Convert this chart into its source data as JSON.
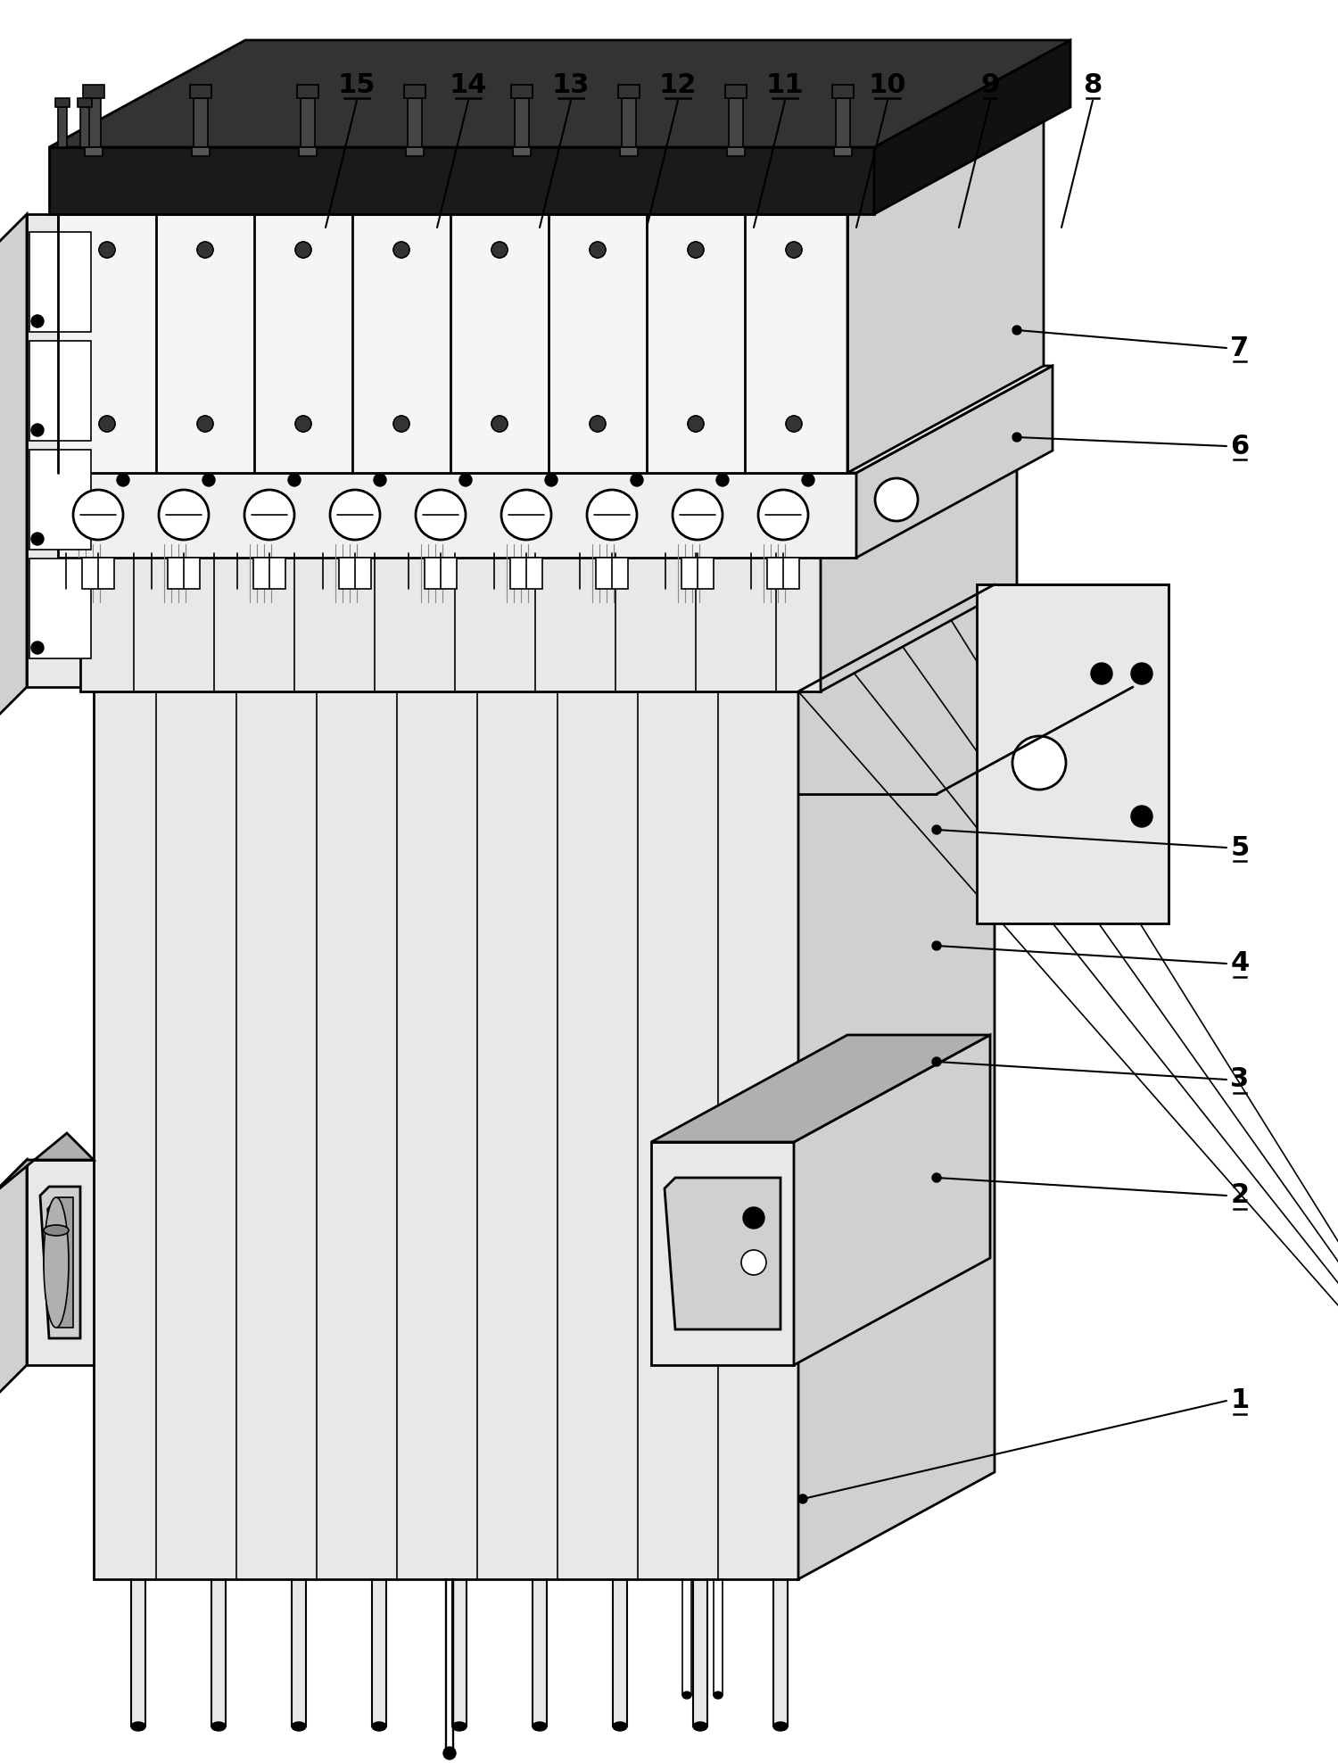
{
  "background_color": "#ffffff",
  "line_color": "#000000",
  "fig_width": 15.0,
  "fig_height": 19.76,
  "lw_main": 2.0,
  "lw_thin": 1.2,
  "lw_thick": 2.5,
  "label_fontsize": 22,
  "gray_light": "#e8e8e8",
  "gray_mid": "#d0d0d0",
  "gray_dark": "#b0b0b0",
  "gray_very_dark": "#505050",
  "white": "#ffffff",
  "black": "#000000",
  "top_labels": [
    [
      "8",
      1225,
      95
    ],
    [
      "9",
      1110,
      95
    ],
    [
      "10",
      995,
      95
    ],
    [
      "11",
      880,
      95
    ],
    [
      "12",
      760,
      95
    ],
    [
      "13",
      640,
      95
    ],
    [
      "14",
      525,
      95
    ],
    [
      "15",
      400,
      95
    ]
  ],
  "right_labels": [
    [
      "7",
      1390,
      390
    ],
    [
      "6",
      1390,
      500
    ],
    [
      "5",
      1390,
      950
    ],
    [
      "4",
      1390,
      1080
    ],
    [
      "3",
      1390,
      1210
    ],
    [
      "2",
      1390,
      1340
    ],
    [
      "1",
      1390,
      1570
    ]
  ]
}
